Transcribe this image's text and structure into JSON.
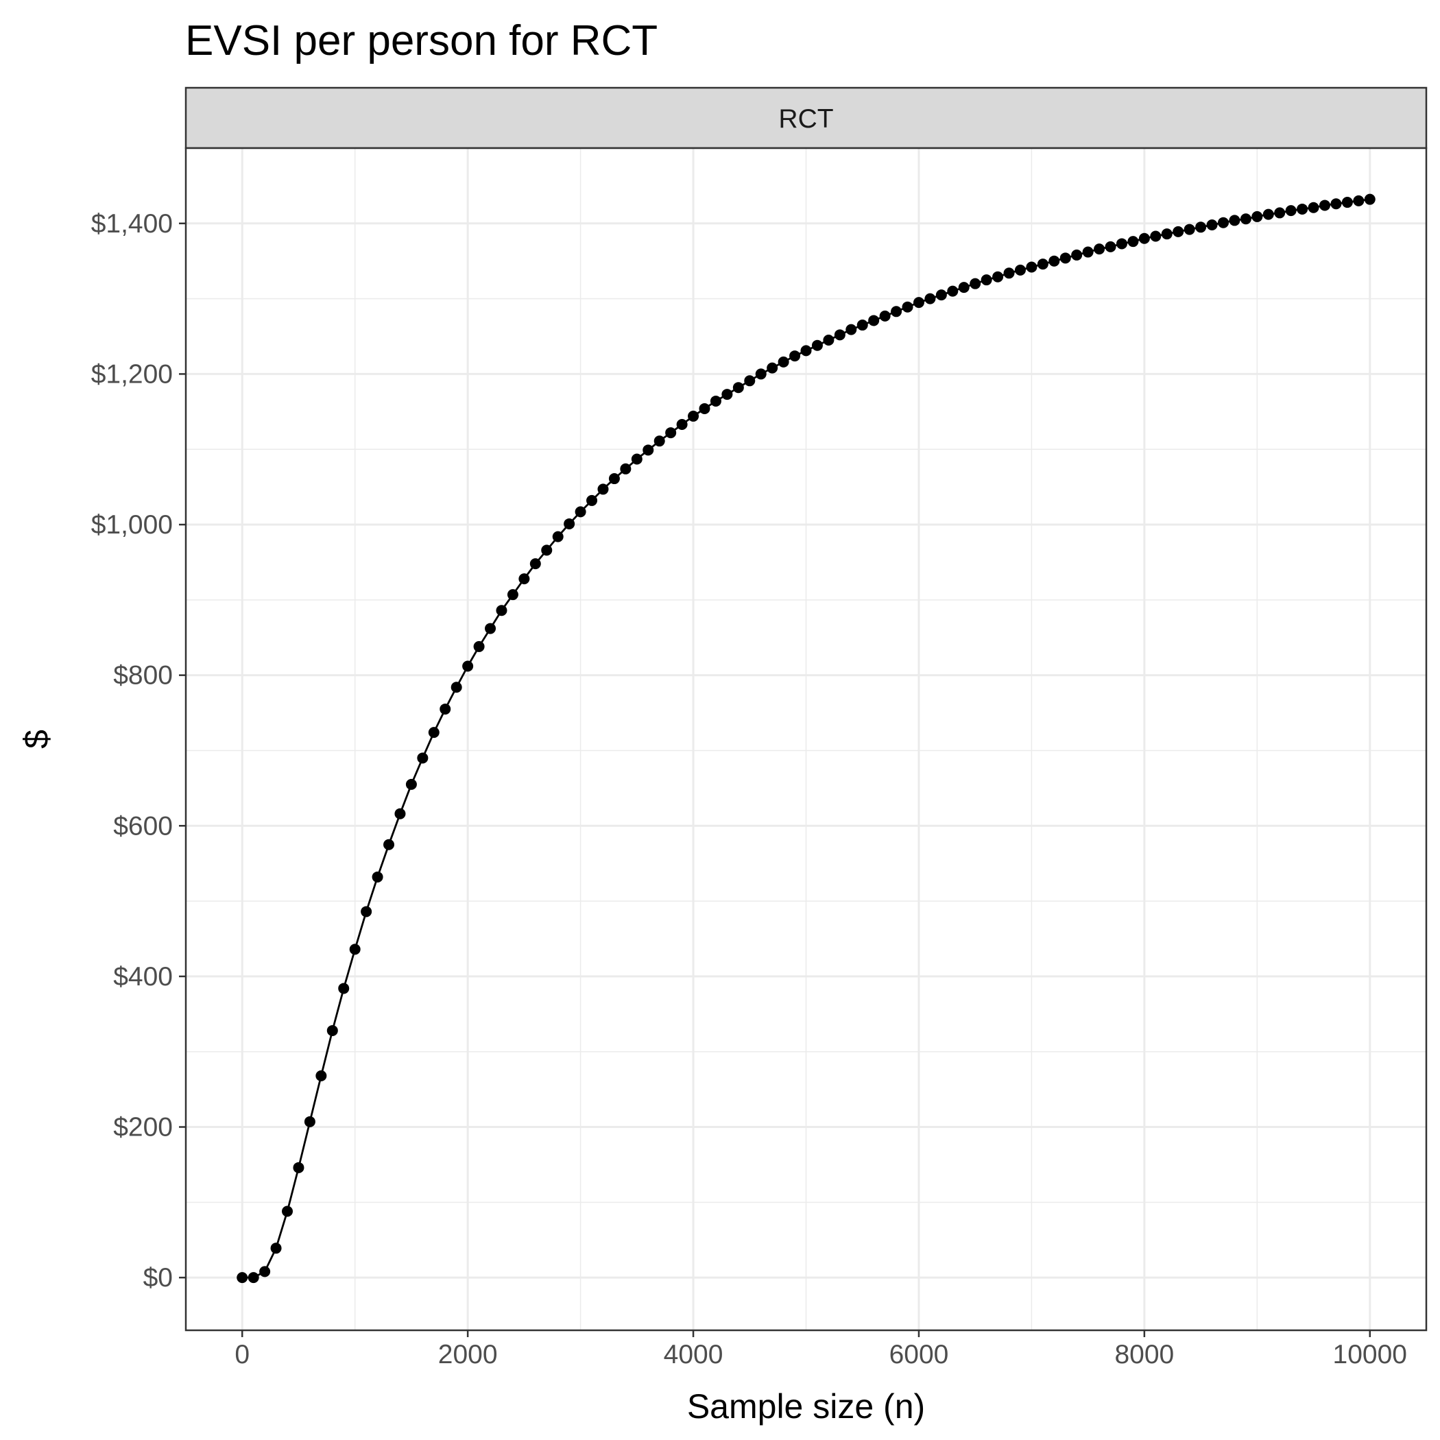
{
  "chart_data": {
    "type": "line",
    "title": "EVSI per person for RCT",
    "facet_label": "RCT",
    "xlabel": "Sample size (n)",
    "ylabel": "$",
    "xlim": [
      -500,
      10500
    ],
    "ylim": [
      -70,
      1500
    ],
    "x_ticks": [
      0,
      2000,
      4000,
      6000,
      8000,
      10000
    ],
    "x_tick_labels": [
      "0",
      "2000",
      "4000",
      "6000",
      "8000",
      "10000"
    ],
    "y_ticks": [
      0,
      200,
      400,
      600,
      800,
      1000,
      1200,
      1400
    ],
    "y_tick_labels": [
      "$0",
      "$200",
      "$400",
      "$600",
      "$800",
      "$1,000",
      "$1,200",
      "$1,400"
    ],
    "grid": true,
    "legend": "none",
    "line_color": "#000000",
    "strip_fill": "#d9d9d9",
    "series": [
      {
        "x": [
          0,
          100,
          200,
          300,
          400,
          500,
          600,
          700,
          800,
          900,
          1000,
          1100,
          1200,
          1300,
          1400,
          1500,
          1600,
          1700,
          1800,
          1900,
          2000,
          2100,
          2200,
          2300,
          2400,
          2500,
          2600,
          2700,
          2800,
          2900,
          3000,
          3100,
          3200,
          3300,
          3400,
          3500,
          3600,
          3700,
          3800,
          3900,
          4000,
          4100,
          4200,
          4300,
          4400,
          4500,
          4600,
          4700,
          4800,
          4900,
          5000,
          5100,
          5200,
          5300,
          5400,
          5500,
          5600,
          5700,
          5800,
          5900,
          6000,
          6100,
          6200,
          6300,
          6400,
          6500,
          6600,
          6700,
          6800,
          6900,
          7000,
          7100,
          7200,
          7300,
          7400,
          7500,
          7600,
          7700,
          7800,
          7900,
          8000,
          8100,
          8200,
          8300,
          8400,
          8500,
          8600,
          8700,
          8800,
          8900,
          9000,
          9100,
          9200,
          9300,
          9400,
          9500,
          9600,
          9700,
          9800,
          9900,
          10000
        ],
        "values": [
          0,
          0,
          8,
          39,
          88,
          146,
          207,
          268,
          328,
          384,
          436,
          486,
          532,
          575,
          616,
          655,
          690,
          724,
          755,
          784,
          812,
          838,
          862,
          886,
          907,
          928,
          948,
          966,
          984,
          1001,
          1017,
          1032,
          1047,
          1061,
          1074,
          1087,
          1099,
          1111,
          1122,
          1133,
          1144,
          1154,
          1164,
          1173,
          1182,
          1191,
          1200,
          1208,
          1216,
          1224,
          1231,
          1238,
          1245,
          1252,
          1259,
          1265,
          1271,
          1277,
          1283,
          1289,
          1295,
          1300,
          1305,
          1310,
          1315,
          1320,
          1325,
          1329,
          1334,
          1338,
          1342,
          1346,
          1350,
          1354,
          1358,
          1362,
          1366,
          1369,
          1373,
          1376,
          1380,
          1383,
          1386,
          1389,
          1392,
          1395,
          1398,
          1401,
          1404,
          1406,
          1409,
          1412,
          1414,
          1417,
          1419,
          1421,
          1424,
          1426,
          1428,
          1430,
          1432
        ]
      }
    ]
  }
}
